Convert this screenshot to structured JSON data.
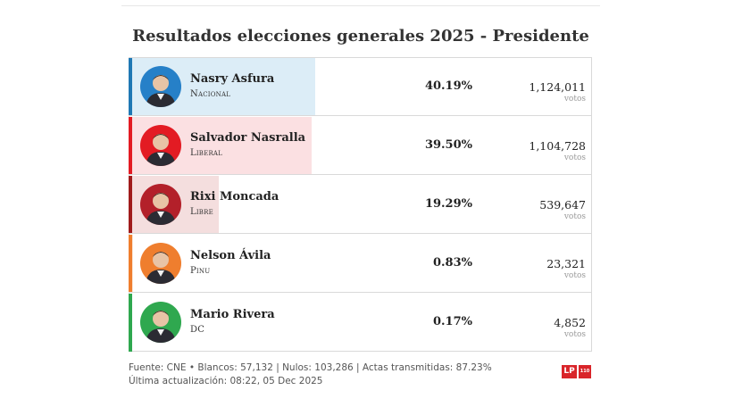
{
  "title": "Resultados elecciones generales 2025 - Presidente",
  "votes_label": "votos",
  "chart_data": {
    "type": "bar",
    "title": "Resultados elecciones generales 2025 - Presidente",
    "categories": [
      "Nasry Asfura",
      "Salvador Nasralla",
      "Rixi Moncada",
      "Nelson Ávila",
      "Mario Rivera"
    ],
    "series": [
      {
        "values": [
          40.19,
          39.5,
          19.29,
          0.83,
          0.17
        ]
      }
    ]
  },
  "candidates": [
    {
      "name": "Nasry Asfura",
      "party": "Nacional",
      "pct": "40.19%",
      "pct_value": 40.19,
      "votes": "1,124,011",
      "bar_color": "#dcedf7",
      "edge_color": "#1f78b4",
      "avatar_color": "#2680c8",
      "face_icon": "person-icon"
    },
    {
      "name": "Salvador Nasralla",
      "party": "Liberal",
      "pct": "39.50%",
      "pct_value": 39.5,
      "votes": "1,104,728",
      "bar_color": "#fbe0e2",
      "edge_color": "#e31b23",
      "avatar_color": "#e31b23",
      "face_icon": "person-icon"
    },
    {
      "name": "Rixi Moncada",
      "party": "Libre",
      "pct": "19.29%",
      "pct_value": 19.29,
      "votes": "539,647",
      "bar_color": "#f4dede",
      "edge_color": "#a01c1c",
      "avatar_color": "#b3202a",
      "face_icon": "person-icon"
    },
    {
      "name": "Nelson Ávila",
      "party": "Pinu",
      "pct": "0.83%",
      "pct_value": 0.83,
      "votes": "23,321",
      "bar_color": "#fbe8d8",
      "edge_color": "#ef7e2e",
      "avatar_color": "#ef7e2e",
      "face_icon": "person-icon"
    },
    {
      "name": "Mario Rivera",
      "party": "DC",
      "pct": "0.17%",
      "pct_value": 0.17,
      "votes": "4,852",
      "bar_color": "#dff3e3",
      "edge_color": "#2fa84f",
      "avatar_color": "#2fa84f",
      "face_icon": "person-icon"
    }
  ],
  "footer": {
    "line1": "Fuente: CNE • Blancos: 57,132 | Nulos: 103,286 | Actas transmitidas: 87.23%",
    "line2": "Última actualización: 08:22, 05 Dec 2025"
  },
  "logo": {
    "text": "LP",
    "badge": "110"
  }
}
